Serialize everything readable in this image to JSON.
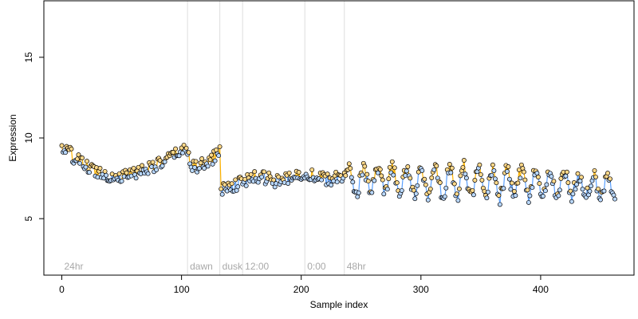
{
  "chart_data": {
    "type": "scatter",
    "title": "",
    "xlabel": "Sample index",
    "ylabel": "Expression",
    "xlim": [
      -15,
      478
    ],
    "ylim": [
      1.5,
      18.5
    ],
    "x_ticks": [
      0,
      100,
      200,
      300,
      400
    ],
    "y_ticks": [
      5,
      10,
      15
    ],
    "grid": false,
    "legend": "none",
    "colors": {
      "high": "#ffb300",
      "low": "#5aa0ff",
      "point_fill_high": "#ffd98a",
      "point_fill_low": "#b9d8ff",
      "point_stroke": "#000000",
      "vline": "#dddddd",
      "phase_text": "#a8a8a8"
    },
    "phase_markers": [
      {
        "label": "24hr",
        "x": 0,
        "line": false
      },
      {
        "label": "dawn",
        "x": 105,
        "line": true
      },
      {
        "label": "dusk",
        "x": 132,
        "line": true
      },
      {
        "label": "12:00",
        "x": 151,
        "line": true
      },
      {
        "label": "0:00",
        "x": 203,
        "line": true
      },
      {
        "label": "48hr",
        "x": 236,
        "line": true
      }
    ],
    "segments": [
      {
        "x0": 0,
        "x1": 132,
        "values": [
          9.4,
          9.2,
          9.0,
          8.7,
          8.5,
          8.3,
          8.1,
          8.0,
          7.9,
          7.8,
          7.7,
          7.6,
          7.6,
          7.6,
          7.7,
          7.8,
          7.9,
          8.0,
          8.1,
          8.2,
          8.3,
          8.4,
          8.5,
          8.7,
          8.9,
          9.1,
          9.2,
          9.3,
          8.3,
          8.2,
          8.3,
          8.4,
          8.6,
          8.9,
          9.3
        ]
      },
      {
        "x0": 133,
        "x1": 236,
        "values": [
          6.8,
          6.9,
          7.0,
          7.1,
          7.2,
          7.3,
          7.4,
          7.5,
          7.6,
          7.6,
          7.5,
          7.4,
          7.3,
          7.3,
          7.4,
          7.5,
          7.6,
          7.7,
          7.8,
          7.8,
          7.7,
          7.6,
          7.5,
          7.4,
          7.4,
          7.5,
          7.6,
          7.7
        ]
      },
      {
        "x0": 237,
        "x1": 462,
        "wave": {
          "mean": 7.4,
          "amplitude": 0.85,
          "period": 12,
          "trend": -0.0015
        }
      }
    ]
  }
}
